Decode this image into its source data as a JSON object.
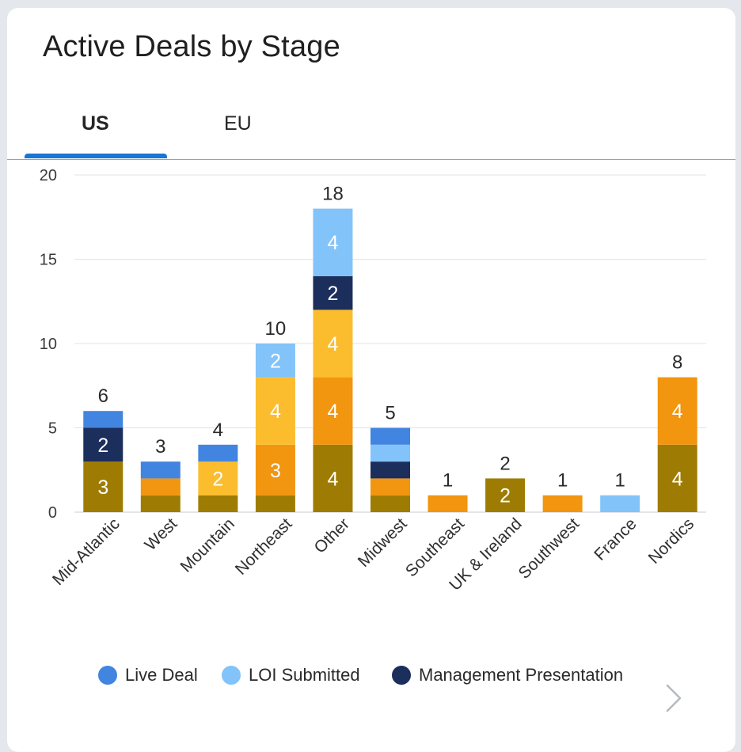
{
  "title": "Active Deals by Stage",
  "tabs": [
    {
      "label": "US",
      "active": true
    },
    {
      "label": "EU",
      "active": false
    }
  ],
  "colors": {
    "Live Deal": "#4285e0",
    "LOI Submitted": "#82c3fa",
    "Management Presentation": "#1c2e5c",
    "stage_gold": "#fbbd2d",
    "stage_orange": "#f2950f",
    "stage_olive": "#9e7c03"
  },
  "legend": [
    {
      "label": "Live Deal",
      "color": "#4285e0"
    },
    {
      "label": "LOI Submitted",
      "color": "#82c3fa"
    },
    {
      "label": "Management Presentation",
      "color": "#1c2e5c"
    }
  ],
  "chart_data": {
    "type": "bar",
    "stacked": true,
    "categories": [
      "Mid-Atlantic",
      "West",
      "Mountain",
      "Northeast",
      "Other",
      "Midwest",
      "Southeast",
      "UK & Ireland",
      "Southwest",
      "France",
      "Nordics"
    ],
    "totals": [
      6,
      3,
      4,
      10,
      18,
      5,
      1,
      2,
      1,
      1,
      8
    ],
    "ylim": [
      0,
      20
    ],
    "yticks": [
      0,
      5,
      10,
      15,
      20
    ],
    "grid": true,
    "legend_position": "bottom",
    "series": [
      {
        "name": "",
        "color_key": "stage_olive",
        "values": [
          3,
          1,
          1,
          1,
          4,
          1,
          0,
          2,
          0,
          0,
          4
        ]
      },
      {
        "name": "",
        "color_key": "stage_orange",
        "values": [
          0,
          1,
          0,
          3,
          4,
          1,
          1,
          0,
          1,
          0,
          4
        ]
      },
      {
        "name": "",
        "color_key": "stage_gold",
        "values": [
          0,
          0,
          2,
          4,
          4,
          0,
          0,
          0,
          0,
          0,
          0
        ]
      },
      {
        "name": "Management Presentation",
        "color_key": "Management Presentation",
        "values": [
          2,
          0,
          0,
          0,
          2,
          1,
          0,
          0,
          0,
          0,
          0
        ]
      },
      {
        "name": "LOI Submitted",
        "color_key": "LOI Submitted",
        "values": [
          0,
          0,
          0,
          2,
          4,
          1,
          0,
          0,
          0,
          1,
          0
        ]
      },
      {
        "name": "Live Deal",
        "color_key": "Live Deal",
        "values": [
          1,
          1,
          1,
          0,
          0,
          1,
          0,
          0,
          0,
          0,
          0
        ]
      }
    ]
  }
}
